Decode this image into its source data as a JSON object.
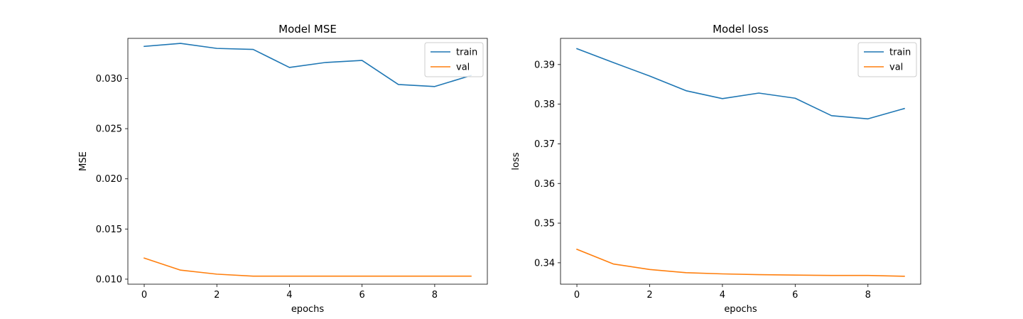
{
  "chart_data": [
    {
      "type": "line",
      "title": "Model MSE",
      "xlabel": "epochs",
      "ylabel": "MSE",
      "x": [
        0,
        1,
        2,
        3,
        4,
        5,
        6,
        7,
        8,
        9
      ],
      "xticks": [
        0,
        2,
        4,
        6,
        8
      ],
      "xlim": [
        -0.45,
        9.45
      ],
      "yticks": [
        0.01,
        0.015,
        0.02,
        0.025,
        0.03
      ],
      "ytick_labels": [
        "0.010",
        "0.015",
        "0.020",
        "0.025",
        "0.030"
      ],
      "ylim": [
        0.0095,
        0.034
      ],
      "legend_position": "top-right",
      "grid": false,
      "series": [
        {
          "name": "train",
          "color": "#1f77b4",
          "values": [
            0.0332,
            0.0335,
            0.033,
            0.0329,
            0.0311,
            0.0316,
            0.0318,
            0.0294,
            0.0292,
            0.0303
          ]
        },
        {
          "name": "val",
          "color": "#ff7f0e",
          "values": [
            0.0121,
            0.0109,
            0.0105,
            0.0103,
            0.0103,
            0.0103,
            0.0103,
            0.0103,
            0.0103,
            0.0103
          ]
        }
      ]
    },
    {
      "type": "line",
      "title": "Model loss",
      "xlabel": "epochs",
      "ylabel": "loss",
      "x": [
        0,
        1,
        2,
        3,
        4,
        5,
        6,
        7,
        8,
        9
      ],
      "xticks": [
        0,
        2,
        4,
        6,
        8
      ],
      "xlim": [
        -0.45,
        9.45
      ],
      "yticks": [
        0.34,
        0.35,
        0.36,
        0.37,
        0.38,
        0.39
      ],
      "ytick_labels": [
        "0.34",
        "0.35",
        "0.36",
        "0.37",
        "0.38",
        "0.39"
      ],
      "ylim": [
        0.3346,
        0.3966
      ],
      "legend_position": "top-right",
      "grid": false,
      "series": [
        {
          "name": "train",
          "color": "#1f77b4",
          "values": [
            0.394,
            0.3905,
            0.3871,
            0.3834,
            0.3814,
            0.3828,
            0.3815,
            0.3771,
            0.3763,
            0.3789
          ]
        },
        {
          "name": "val",
          "color": "#ff7f0e",
          "values": [
            0.3434,
            0.3397,
            0.3383,
            0.3375,
            0.3372,
            0.337,
            0.3369,
            0.3368,
            0.3368,
            0.3366
          ]
        }
      ]
    }
  ]
}
